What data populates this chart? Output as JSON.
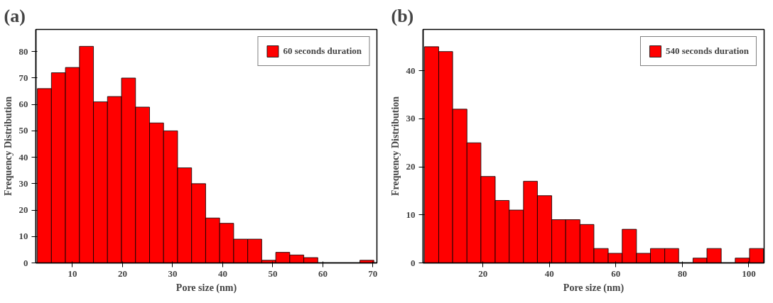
{
  "chart_data": [
    {
      "type": "histogram",
      "title": "(a)",
      "xlabel": "Pore size (nm)",
      "ylabel": "Frequency Distribution",
      "bins": [
        3.0,
        5.8,
        8.6,
        11.4,
        14.2,
        17.0,
        19.8,
        22.6,
        25.4,
        28.2,
        31.0,
        33.8,
        36.6,
        39.4,
        42.2,
        45.0,
        47.8,
        50.6,
        53.4,
        56.2,
        59.0,
        61.8,
        64.6,
        67.4,
        70.2
      ],
      "series": [
        {
          "name": "60 seconds duration",
          "color": "#ff0000",
          "values": [
            66,
            72,
            74,
            82,
            61,
            63,
            70,
            59,
            53,
            50,
            36,
            30,
            17,
            15,
            9,
            9,
            1,
            4,
            3,
            2,
            0,
            0,
            0,
            1
          ]
        }
      ],
      "xlim": [
        2.7,
        70.8
      ],
      "xticks": [
        10,
        20,
        30,
        40,
        50,
        60,
        70
      ],
      "ylim": [
        0,
        88.4
      ],
      "yticks": [
        0,
        10,
        20,
        30,
        40,
        50,
        60,
        70,
        80
      ],
      "legend": "top right"
    },
    {
      "type": "histogram",
      "title": "(b)",
      "xlabel": "Pore size (nm)",
      "ylabel": "Frequency Distribution",
      "bins": [
        2.4,
        6.7,
        10.9,
        15.2,
        19.4,
        23.7,
        27.9,
        32.2,
        36.4,
        40.7,
        44.9,
        49.2,
        53.4,
        57.7,
        61.9,
        66.2,
        70.4,
        74.7,
        78.9,
        83.2,
        87.4,
        91.7,
        95.9,
        100.2,
        104.4
      ],
      "series": [
        {
          "name": "540 seconds duration",
          "color": "#ff0000",
          "values": [
            45,
            44,
            32,
            25,
            18,
            13,
            11,
            17,
            14,
            9,
            9,
            8,
            3,
            2,
            7,
            2,
            3,
            3,
            0,
            1,
            3,
            0,
            1,
            3
          ]
        }
      ],
      "xlim": [
        2.0,
        104.6
      ],
      "xticks": [
        20,
        40,
        60,
        80,
        100
      ],
      "ylim": [
        0,
        48.6
      ],
      "yticks": [
        0,
        10,
        20,
        30,
        40
      ],
      "legend": "top right"
    }
  ]
}
